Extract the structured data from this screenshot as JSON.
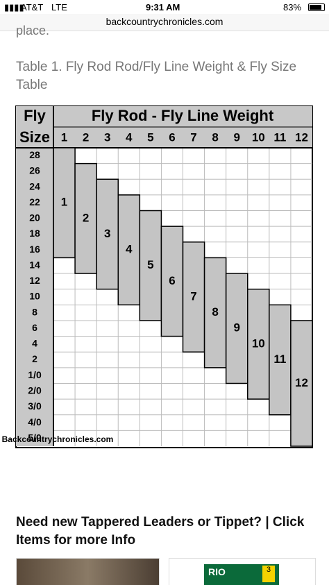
{
  "status_bar": {
    "carrier": "AT&T",
    "network": "LTE",
    "time": "9:31 AM",
    "battery": "83%"
  },
  "url": "backcountrychronicles.com",
  "partial_text": "place.",
  "caption": "Table 1. Fly Rod Rod/Fly Line Weight & Fly Size Table",
  "table": {
    "corner_top": "Fly",
    "corner_bottom": "Size",
    "title": "Fly Rod - Fly Line Weight",
    "weights": [
      "1",
      "2",
      "3",
      "4",
      "5",
      "6",
      "7",
      "8",
      "9",
      "10",
      "11",
      "12"
    ],
    "sizes": [
      "28",
      "26",
      "24",
      "22",
      "20",
      "18",
      "16",
      "14",
      "12",
      "10",
      "8",
      "6",
      "4",
      "2",
      "1/0",
      "2/0",
      "3/0",
      "4/0",
      "5/0"
    ],
    "ranges": [
      {
        "from": "28",
        "to": "16"
      },
      {
        "from": "26",
        "to": "14"
      },
      {
        "from": "24",
        "to": "12"
      },
      {
        "from": "22",
        "to": "10"
      },
      {
        "from": "20",
        "to": "8"
      },
      {
        "from": "18",
        "to": "6"
      },
      {
        "from": "16",
        "to": "4"
      },
      {
        "from": "14",
        "to": "2"
      },
      {
        "from": "12",
        "to": "1/0"
      },
      {
        "from": "10",
        "to": "2/0"
      },
      {
        "from": "8",
        "to": "3/0"
      },
      {
        "from": "6",
        "to": "5/0"
      }
    ],
    "watermark": "Backcountrychronicles.com"
  },
  "promo": "Need new Tappered Leaders or Tippet? | Click Items for more Info",
  "product": {
    "brand": "RIO",
    "count": "3"
  }
}
